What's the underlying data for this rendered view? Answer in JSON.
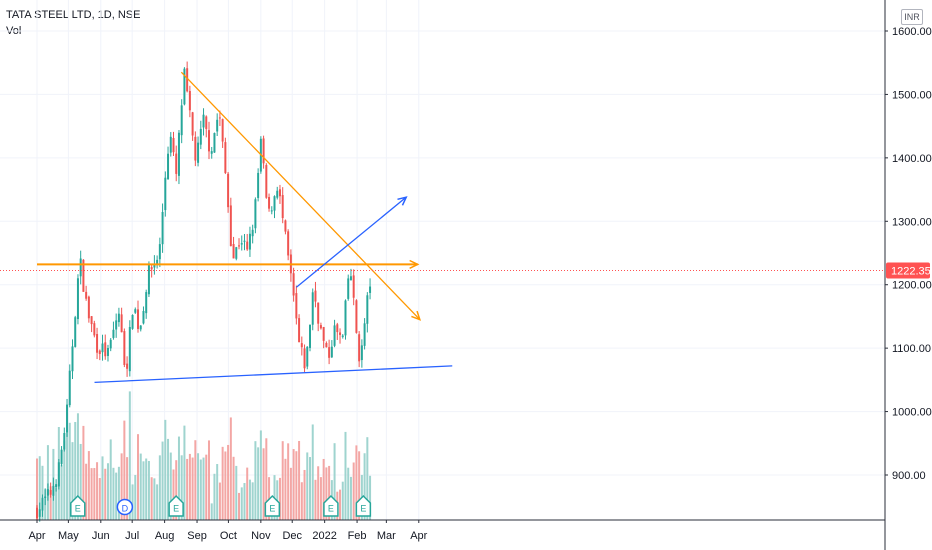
{
  "header": {
    "symbol": "TATA STEEL LTD, 1D, NSE",
    "volume_label": "Vol",
    "currency_button": "INR"
  },
  "price_tag": {
    "value": "1222.35",
    "color": "#ff5252"
  },
  "colors": {
    "up": "#26a69a",
    "down": "#ef5350",
    "vol_up": "#9fd4cf",
    "vol_down": "#f3a6a4",
    "resistance": "#ff9800",
    "support": "#2962ff"
  },
  "chart_data": {
    "type": "candlestick",
    "y_ticks": [
      "1600.00",
      "1500.00",
      "1400.00",
      "1300.00",
      "1200.00",
      "1100.00",
      "1000.00",
      "900.00"
    ],
    "x_ticks": [
      "Apr",
      "May",
      "Jun",
      "Jul",
      "Aug",
      "Sep",
      "Oct",
      "Nov",
      "Dec",
      "2022",
      "Feb",
      "Mar",
      "Apr"
    ],
    "y_range": [
      820,
      1625
    ],
    "last_price": 1222.35,
    "event_markers": [
      {
        "label": "E",
        "date": "2021-05-10"
      },
      {
        "label": "D",
        "date": "2021-06-24"
      },
      {
        "label": "E",
        "date": "2021-08-12"
      },
      {
        "label": "E",
        "date": "2021-11-12"
      },
      {
        "label": "E",
        "date": "2022-01-07"
      },
      {
        "label": "E",
        "date": "2022-02-07"
      }
    ],
    "price_path": [
      [
        "2021-04-01",
        845
      ],
      [
        "2021-04-14",
        872
      ],
      [
        "2021-04-22",
        910
      ],
      [
        "2021-04-30",
        1005
      ],
      [
        "2021-05-07",
        1150
      ],
      [
        "2021-05-12",
        1240
      ],
      [
        "2021-05-19",
        1160
      ],
      [
        "2021-05-28",
        1105
      ],
      [
        "2021-06-08",
        1090
      ],
      [
        "2021-06-18",
        1160
      ],
      [
        "2021-06-25",
        1060
      ],
      [
        "2021-07-02",
        1175
      ],
      [
        "2021-07-08",
        1125
      ],
      [
        "2021-07-16",
        1215
      ],
      [
        "2021-07-27",
        1250
      ],
      [
        "2021-08-02",
        1380
      ],
      [
        "2021-08-06",
        1440
      ],
      [
        "2021-08-12",
        1370
      ],
      [
        "2021-08-17",
        1480
      ],
      [
        "2021-08-20",
        1530
      ],
      [
        "2021-08-25",
        1465
      ],
      [
        "2021-08-31",
        1395
      ],
      [
        "2021-09-07",
        1460
      ],
      [
        "2021-09-14",
        1410
      ],
      [
        "2021-09-22",
        1475
      ],
      [
        "2021-09-29",
        1360
      ],
      [
        "2021-10-05",
        1240
      ],
      [
        "2021-10-13",
        1275
      ],
      [
        "2021-10-19",
        1250
      ],
      [
        "2021-10-26",
        1310
      ],
      [
        "2021-11-01",
        1425
      ],
      [
        "2021-11-08",
        1305
      ],
      [
        "2021-11-17",
        1360
      ],
      [
        "2021-11-25",
        1265
      ],
      [
        "2021-12-01",
        1195
      ],
      [
        "2021-12-08",
        1100
      ],
      [
        "2021-12-14",
        1070
      ],
      [
        "2021-12-21",
        1195
      ],
      [
        "2021-12-28",
        1130
      ],
      [
        "2022-01-04",
        1080
      ],
      [
        "2022-01-10",
        1130
      ],
      [
        "2022-01-18",
        1110
      ],
      [
        "2022-01-25",
        1235
      ],
      [
        "2022-01-31",
        1130
      ],
      [
        "2022-02-04",
        1075
      ],
      [
        "2022-02-10",
        1165
      ],
      [
        "2022-02-15",
        1222
      ]
    ],
    "drawings": [
      {
        "name": "descending-trendline",
        "color": "#ff9800",
        "from": [
          "2021-08-17",
          1535
        ],
        "to": [
          "2022-04-02",
          1145
        ],
        "arrow": true
      },
      {
        "name": "horizontal-resistance",
        "color": "#ff9800",
        "from": [
          "2021-04-01",
          1232
        ],
        "to": [
          "2022-03-31",
          1232
        ],
        "arrow": true
      },
      {
        "name": "ascending-trendline",
        "color": "#2962ff",
        "from": [
          "2021-12-05",
          1196
        ],
        "to": [
          "2022-03-20",
          1338
        ],
        "arrow": true
      },
      {
        "name": "support-line",
        "color": "#2962ff",
        "from": [
          "2021-05-26",
          1046
        ],
        "to": [
          "2022-05-03",
          1072
        ],
        "arrow": false
      }
    ]
  }
}
